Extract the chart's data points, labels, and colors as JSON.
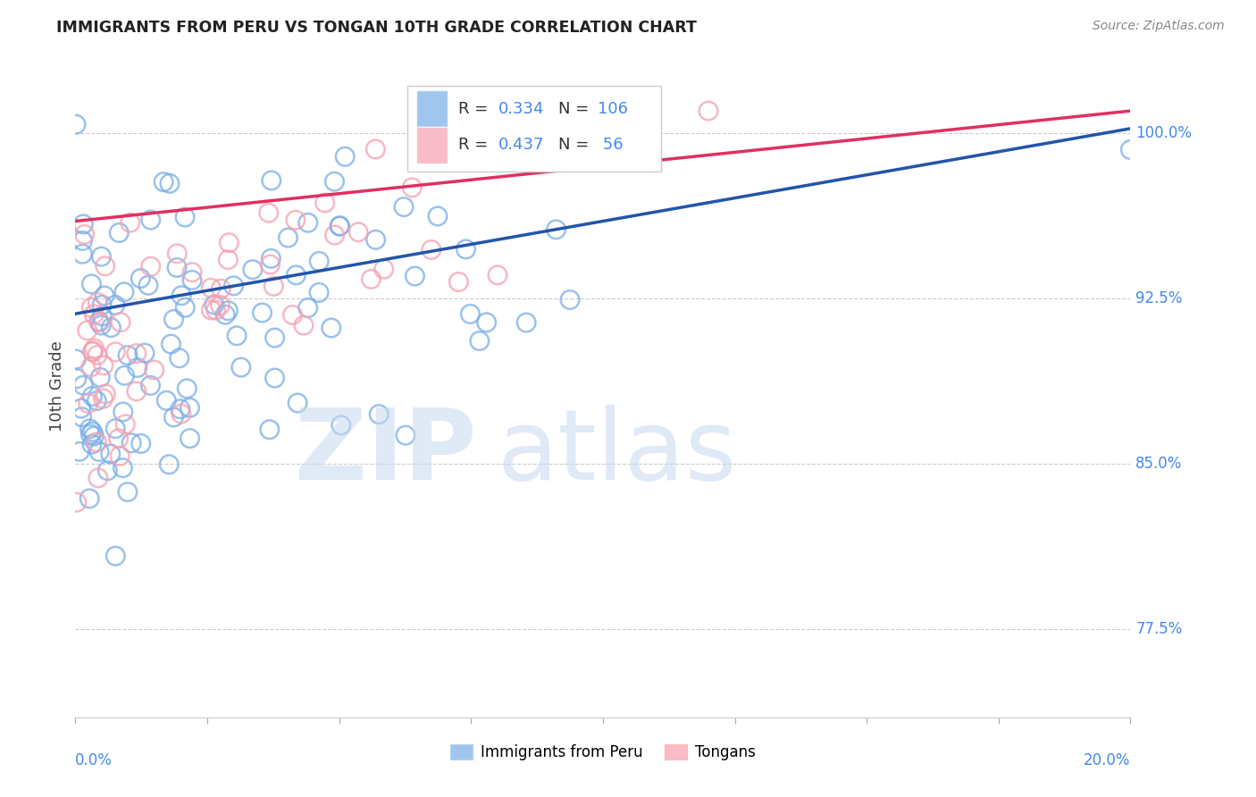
{
  "title": "IMMIGRANTS FROM PERU VS TONGAN 10TH GRADE CORRELATION CHART",
  "source": "Source: ZipAtlas.com",
  "ylabel": "10th Grade",
  "ytick_labels": [
    "100.0%",
    "92.5%",
    "85.0%",
    "77.5%"
  ],
  "ytick_values": [
    1.0,
    0.925,
    0.85,
    0.775
  ],
  "xlim": [
    0.0,
    0.2
  ],
  "ylim": [
    0.735,
    1.035
  ],
  "legend_peru_label": "Immigrants from Peru",
  "legend_tongan_label": "Tongans",
  "peru_R": 0.334,
  "peru_N": 106,
  "tongan_R": 0.437,
  "tongan_N": 56,
  "peru_color": "#7aaee8",
  "tongan_color": "#f5a0b0",
  "peru_line_color": "#2255aa",
  "tongan_line_color": "#e03060",
  "peru_line_y0": 0.918,
  "peru_line_y1": 1.002,
  "tongan_line_y0": 0.96,
  "tongan_line_y1": 1.01
}
